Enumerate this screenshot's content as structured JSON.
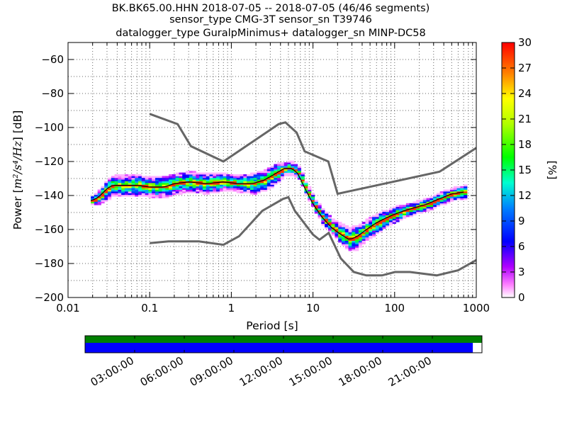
{
  "title_lines": [
    "BK.BK65.00.HHN   2018-07-05 -- 2018-07-05  (46/46 segments)",
    "sensor_type CMG-3T sensor_sn T39746",
    "datalogger_type GuralpMinimus+ datalogger_sn MINP-DC58"
  ],
  "chart_data": {
    "type": "heatmap",
    "xlabel": "Period [s]",
    "ylabel_prefix": "Power [",
    "ylabel_units": "m²/s⁴/Hz",
    "ylabel_suffix": "] [dB]",
    "x_scale": "log",
    "xlim": [
      0.01,
      1000
    ],
    "ylim": [
      -200,
      -50
    ],
    "x_ticks": [
      {
        "value": 0.01,
        "label": "0.01"
      },
      {
        "value": 0.1,
        "label": "0.1"
      },
      {
        "value": 1,
        "label": "1"
      },
      {
        "value": 10,
        "label": "10"
      },
      {
        "value": 100,
        "label": "100"
      },
      {
        "value": 1000,
        "label": "1000"
      }
    ],
    "y_ticks": [
      -60,
      -80,
      -100,
      -120,
      -140,
      -160,
      -180,
      -200
    ],
    "grid": "dotted",
    "colorbar": {
      "label": "[%]",
      "min": 0,
      "max": 30,
      "ticks": [
        0,
        3,
        6,
        9,
        12,
        15,
        18,
        21,
        24,
        27,
        30
      ]
    },
    "psd_band": [
      {
        "period": 0.019,
        "center": -143,
        "half_width": 2
      },
      {
        "period": 0.022,
        "center": -142,
        "half_width": 3
      },
      {
        "period": 0.026,
        "center": -139,
        "half_width": 4
      },
      {
        "period": 0.03,
        "center": -136,
        "half_width": 5
      },
      {
        "period": 0.035,
        "center": -134,
        "half_width": 5
      },
      {
        "period": 0.05,
        "center": -134,
        "half_width": 5
      },
      {
        "period": 0.07,
        "center": -134,
        "half_width": 5
      },
      {
        "period": 0.1,
        "center": -135,
        "half_width": 5
      },
      {
        "period": 0.15,
        "center": -135,
        "half_width": 5
      },
      {
        "period": 0.2,
        "center": -133,
        "half_width": 5
      },
      {
        "period": 0.3,
        "center": -132,
        "half_width": 5
      },
      {
        "period": 0.5,
        "center": -133,
        "half_width": 5
      },
      {
        "period": 0.8,
        "center": -132,
        "half_width": 4
      },
      {
        "period": 1.2,
        "center": -133,
        "half_width": 4
      },
      {
        "period": 1.8,
        "center": -133,
        "half_width": 5
      },
      {
        "period": 2.5,
        "center": -131,
        "half_width": 5
      },
      {
        "period": 3.5,
        "center": -127,
        "half_width": 5
      },
      {
        "period": 4.5,
        "center": -124,
        "half_width": 3
      },
      {
        "period": 5.5,
        "center": -124,
        "half_width": 3
      },
      {
        "period": 6.5,
        "center": -127,
        "half_width": 3
      },
      {
        "period": 8,
        "center": -136,
        "half_width": 3
      },
      {
        "period": 10,
        "center": -145,
        "half_width": 3
      },
      {
        "period": 13,
        "center": -153,
        "half_width": 4
      },
      {
        "period": 17,
        "center": -159,
        "half_width": 4
      },
      {
        "period": 22,
        "center": -163,
        "half_width": 5
      },
      {
        "period": 28,
        "center": -166,
        "half_width": 6
      },
      {
        "period": 35,
        "center": -164,
        "half_width": 6
      },
      {
        "period": 45,
        "center": -160,
        "half_width": 5
      },
      {
        "period": 60,
        "center": -156,
        "half_width": 5
      },
      {
        "period": 80,
        "center": -153,
        "half_width": 4
      },
      {
        "period": 100,
        "center": -151,
        "half_width": 4
      },
      {
        "period": 130,
        "center": -149,
        "half_width": 3
      },
      {
        "period": 180,
        "center": -147,
        "half_width": 3
      },
      {
        "period": 250,
        "center": -145,
        "half_width": 3
      },
      {
        "period": 350,
        "center": -142,
        "half_width": 3
      },
      {
        "period": 500,
        "center": -139,
        "half_width": 3
      },
      {
        "period": 700,
        "center": -138,
        "half_width": 3
      }
    ],
    "new_high_noise_model": [
      [
        0.1,
        -92
      ],
      [
        0.22,
        -98
      ],
      [
        0.32,
        -111
      ],
      [
        0.8,
        -120
      ],
      [
        3.8,
        -98
      ],
      [
        4.6,
        -97
      ],
      [
        6.3,
        -103
      ],
      [
        7.9,
        -114
      ],
      [
        15.4,
        -120
      ],
      [
        20,
        -139
      ],
      [
        354.8,
        -126
      ],
      [
        1000,
        -112
      ]
    ],
    "new_low_noise_model": [
      [
        0.1,
        -168
      ],
      [
        0.17,
        -167
      ],
      [
        0.4,
        -167
      ],
      [
        0.8,
        -169
      ],
      [
        1.24,
        -164
      ],
      [
        2.4,
        -149
      ],
      [
        4.3,
        -142
      ],
      [
        5,
        -141
      ],
      [
        6,
        -149
      ],
      [
        10,
        -163
      ],
      [
        12,
        -166
      ],
      [
        15.6,
        -162
      ],
      [
        21.9,
        -177
      ],
      [
        31.6,
        -185
      ],
      [
        45,
        -187
      ],
      [
        70,
        -187
      ],
      [
        101,
        -185
      ],
      [
        154,
        -185
      ],
      [
        328,
        -187
      ],
      [
        600,
        -184
      ],
      [
        1000,
        -178
      ]
    ],
    "coverage": {
      "time_ticks": [
        "03:00:00",
        "06:00:00",
        "09:00:00",
        "12:00:00",
        "15:00:00",
        "18:00:00",
        "21:00:00"
      ],
      "time_tick_hours": [
        3,
        6,
        9,
        12,
        15,
        18,
        21
      ],
      "span_hours": 24,
      "data_available_fraction": 1.0,
      "psd_coverage_fraction": 0.977,
      "colors": {
        "data": "#008000",
        "psd": "#0000ff"
      }
    }
  }
}
